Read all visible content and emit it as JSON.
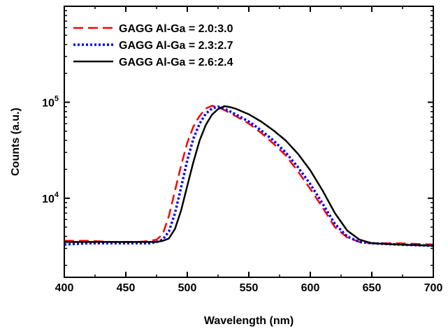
{
  "chart_data": {
    "type": "line",
    "title": "",
    "xlabel": "Wavelength (nm)",
    "ylabel": "Counts (a.u.)",
    "xlim": [
      400,
      700
    ],
    "ylim": [
      1500,
      1000000
    ],
    "yscale": "log",
    "grid": false,
    "legend_position": "top-left",
    "x_ticks": [
      "400",
      "450",
      "500",
      "550",
      "600",
      "650",
      "700"
    ],
    "y_ticks": [
      {
        "base": "10",
        "exp": "4"
      },
      {
        "base": "10",
        "exp": "5"
      }
    ],
    "series": [
      {
        "name": "GAGG Al-Ga = 2.0:3.0",
        "color": "#ff0000",
        "dash": "dashed",
        "x": [
          400,
          420,
          440,
          460,
          470,
          475,
          480,
          485,
          490,
          495,
          500,
          505,
          510,
          515,
          520,
          525,
          530,
          535,
          540,
          550,
          560,
          570,
          580,
          590,
          600,
          610,
          620,
          630,
          640,
          650,
          670,
          700
        ],
        "y": [
          3600,
          3600,
          3500,
          3500,
          3600,
          3700,
          4200,
          6500,
          12000,
          22000,
          38000,
          56000,
          72000,
          86000,
          92000,
          89000,
          83000,
          77000,
          71000,
          60000,
          48000,
          37000,
          28000,
          19000,
          12500,
          8000,
          5000,
          3900,
          3500,
          3400,
          3400,
          3300
        ]
      },
      {
        "name": "GAGG Al-Ga = 2.3:2.7",
        "color": "#0000ff",
        "dash": "dotted",
        "x": [
          400,
          420,
          440,
          460,
          470,
          475,
          480,
          485,
          490,
          495,
          500,
          505,
          510,
          515,
          520,
          525,
          530,
          535,
          540,
          550,
          560,
          570,
          580,
          590,
          600,
          610,
          620,
          630,
          640,
          650,
          670,
          700
        ],
        "y": [
          3300,
          3400,
          3400,
          3400,
          3400,
          3500,
          3700,
          4500,
          7000,
          13000,
          25000,
          42000,
          60000,
          76000,
          86000,
          90000,
          86000,
          80000,
          74000,
          63000,
          51000,
          40000,
          30000,
          21000,
          14000,
          8800,
          5400,
          4000,
          3500,
          3400,
          3300,
          3200
        ]
      },
      {
        "name": "GAGG Al-Ga = 2.6:2.4",
        "color": "#000000",
        "dash": "solid",
        "x": [
          400,
          420,
          440,
          460,
          470,
          475,
          480,
          485,
          490,
          495,
          500,
          505,
          510,
          515,
          520,
          525,
          530,
          535,
          540,
          550,
          560,
          570,
          580,
          590,
          600,
          610,
          620,
          630,
          640,
          650,
          670,
          700
        ],
        "y": [
          3500,
          3500,
          3500,
          3500,
          3500,
          3500,
          3600,
          3800,
          4800,
          7500,
          13500,
          24000,
          40000,
          58000,
          74000,
          85000,
          91000,
          89000,
          85000,
          75000,
          63000,
          51000,
          40000,
          29000,
          19500,
          12000,
          7000,
          4600,
          3700,
          3400,
          3300,
          3200
        ]
      }
    ]
  }
}
